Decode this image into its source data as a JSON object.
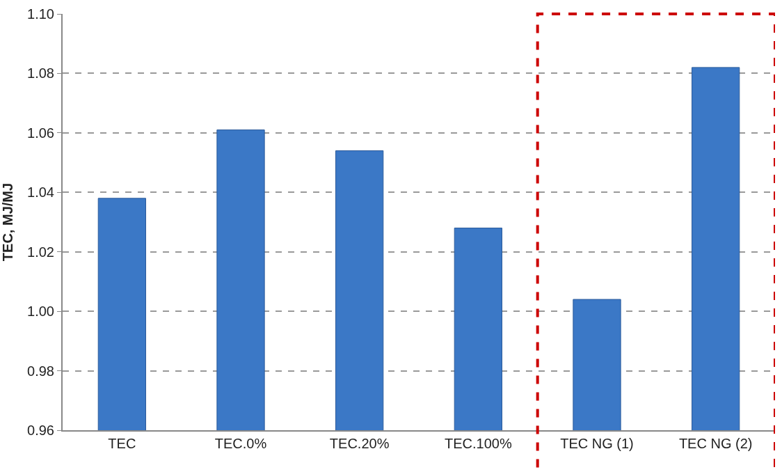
{
  "chart_data": {
    "type": "bar",
    "ylabel": "TEC, MJ/MJ",
    "categories": [
      "TEC",
      "TEC.0%",
      "TEC.20%",
      "TEC.100%",
      "TEC NG (1)",
      "TEC NG (2)"
    ],
    "values": [
      1.038,
      1.061,
      1.054,
      1.028,
      1.004,
      1.082
    ],
    "color": "#3b78c6",
    "ylim": [
      0.96,
      1.1
    ],
    "yticks": [
      {
        "value": 0.96,
        "label": "0.96"
      },
      {
        "value": 0.98,
        "label": "0.98"
      },
      {
        "value": 1.0,
        "label": "1.00"
      },
      {
        "value": 1.02,
        "label": "1.02"
      },
      {
        "value": 1.04,
        "label": "1.04"
      },
      {
        "value": 1.06,
        "label": "1.06"
      },
      {
        "value": 1.08,
        "label": "1.08"
      },
      {
        "value": 1.1,
        "label": "1.10"
      }
    ],
    "grid": "y"
  }
}
